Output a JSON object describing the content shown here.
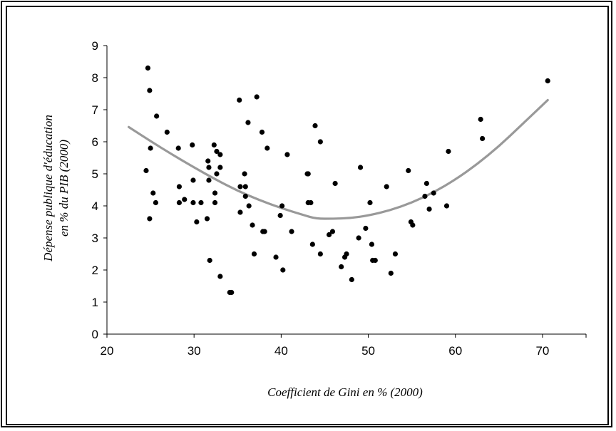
{
  "chart_data": {
    "type": "scatter",
    "title": "",
    "xlabel": "Coefficient de Gini en % (2000)",
    "ylabel_lines": [
      "Dépense publique d'éducation",
      "en % du PIB (2000)"
    ],
    "xlim": [
      20,
      75
    ],
    "ylim": [
      0,
      9
    ],
    "x_ticks": [
      20,
      30,
      40,
      50,
      60,
      70
    ],
    "y_ticks": [
      0,
      1,
      2,
      3,
      4,
      5,
      6,
      7,
      8,
      9
    ],
    "grid": false,
    "legend": "none",
    "colors": {
      "points": "#000000",
      "trend": "#999999",
      "axis": "#000000"
    },
    "points": [
      [
        24.5,
        5.1
      ],
      [
        24.7,
        8.3
      ],
      [
        24.9,
        7.6
      ],
      [
        24.9,
        3.6
      ],
      [
        25.0,
        5.8
      ],
      [
        25.3,
        4.4
      ],
      [
        25.6,
        4.1
      ],
      [
        25.7,
        6.8
      ],
      [
        26.9,
        6.3
      ],
      [
        28.2,
        5.8
      ],
      [
        28.3,
        4.6
      ],
      [
        28.3,
        4.1
      ],
      [
        28.9,
        4.2
      ],
      [
        29.8,
        5.9
      ],
      [
        29.9,
        4.8
      ],
      [
        29.9,
        4.1
      ],
      [
        30.3,
        3.5
      ],
      [
        30.8,
        4.1
      ],
      [
        31.5,
        3.6
      ],
      [
        31.6,
        5.4
      ],
      [
        31.7,
        5.2
      ],
      [
        31.7,
        4.8
      ],
      [
        31.8,
        2.3
      ],
      [
        32.3,
        5.9
      ],
      [
        32.4,
        4.4
      ],
      [
        32.4,
        4.1
      ],
      [
        32.6,
        5.7
      ],
      [
        32.6,
        5.0
      ],
      [
        33.0,
        5.6
      ],
      [
        33.0,
        5.2
      ],
      [
        33.0,
        1.8
      ],
      [
        34.1,
        1.3
      ],
      [
        34.3,
        1.3
      ],
      [
        35.2,
        7.3
      ],
      [
        35.3,
        4.6
      ],
      [
        35.3,
        3.8
      ],
      [
        35.8,
        5.0
      ],
      [
        35.9,
        4.6
      ],
      [
        35.9,
        4.3
      ],
      [
        36.2,
        6.6
      ],
      [
        36.3,
        4.0
      ],
      [
        36.7,
        3.4
      ],
      [
        36.9,
        2.5
      ],
      [
        37.2,
        7.4
      ],
      [
        37.8,
        6.3
      ],
      [
        37.9,
        3.2
      ],
      [
        38.1,
        3.2
      ],
      [
        38.4,
        5.8
      ],
      [
        39.4,
        2.4
      ],
      [
        39.9,
        3.7
      ],
      [
        40.1,
        4.0
      ],
      [
        40.2,
        2.0
      ],
      [
        40.7,
        5.6
      ],
      [
        41.2,
        3.2
      ],
      [
        43.0,
        5.0
      ],
      [
        43.1,
        5.0
      ],
      [
        43.1,
        4.1
      ],
      [
        43.4,
        4.1
      ],
      [
        43.6,
        2.8
      ],
      [
        43.9,
        6.5
      ],
      [
        44.5,
        6.0
      ],
      [
        44.5,
        2.5
      ],
      [
        45.5,
        3.1
      ],
      [
        45.9,
        3.2
      ],
      [
        46.2,
        4.7
      ],
      [
        46.9,
        2.1
      ],
      [
        47.3,
        2.4
      ],
      [
        47.5,
        2.5
      ],
      [
        48.1,
        1.7
      ],
      [
        48.9,
        3.0
      ],
      [
        49.1,
        5.2
      ],
      [
        49.7,
        3.3
      ],
      [
        50.2,
        4.1
      ],
      [
        50.4,
        2.8
      ],
      [
        50.5,
        2.3
      ],
      [
        50.8,
        2.3
      ],
      [
        52.1,
        4.6
      ],
      [
        52.6,
        1.9
      ],
      [
        53.1,
        2.5
      ],
      [
        54.6,
        5.1
      ],
      [
        54.9,
        3.5
      ],
      [
        55.1,
        3.4
      ],
      [
        56.5,
        4.3
      ],
      [
        56.7,
        4.7
      ],
      [
        57.0,
        3.9
      ],
      [
        57.5,
        4.4
      ],
      [
        59.0,
        4.0
      ],
      [
        59.2,
        5.7
      ],
      [
        62.9,
        6.7
      ],
      [
        63.1,
        6.1
      ],
      [
        70.6,
        7.9
      ]
    ],
    "trendline": {
      "type": "polynomial",
      "points": [
        [
          22.5,
          6.46
        ],
        [
          25,
          6.02
        ],
        [
          27.5,
          5.6
        ],
        [
          30,
          5.2
        ],
        [
          32.5,
          4.82
        ],
        [
          35,
          4.47
        ],
        [
          37.5,
          4.18
        ],
        [
          40,
          3.93
        ],
        [
          42.5,
          3.72
        ],
        [
          44,
          3.6
        ],
        [
          46,
          3.6
        ],
        [
          48,
          3.62
        ],
        [
          50,
          3.7
        ],
        [
          52.5,
          3.86
        ],
        [
          55,
          4.1
        ],
        [
          57.5,
          4.42
        ],
        [
          60,
          4.82
        ],
        [
          62.5,
          5.3
        ],
        [
          65,
          5.86
        ],
        [
          67.5,
          6.5
        ],
        [
          70.6,
          7.3
        ]
      ]
    }
  }
}
